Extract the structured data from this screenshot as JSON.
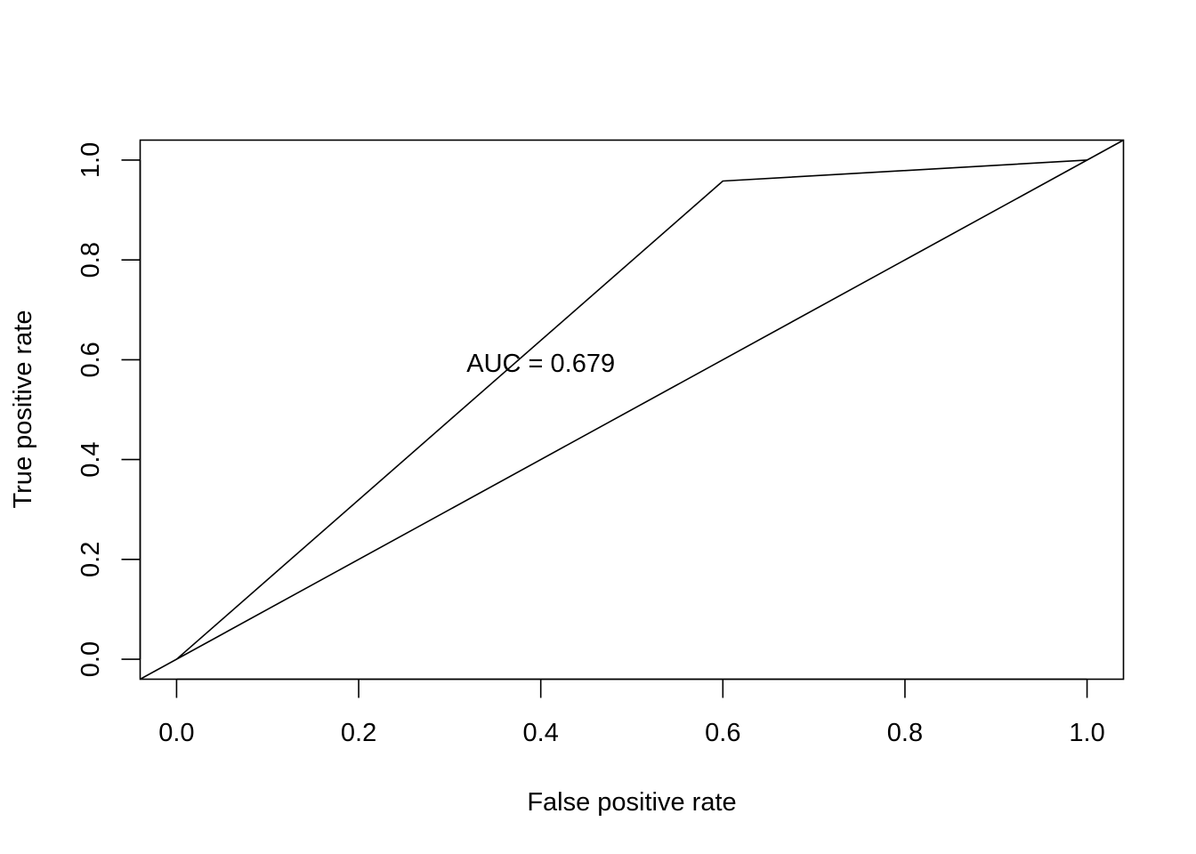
{
  "chart_data": {
    "type": "line",
    "title": "",
    "xlabel": "False positive rate",
    "ylabel": "True positive rate",
    "xlim": [
      -0.04,
      1.04
    ],
    "ylim": [
      -0.04,
      1.04
    ],
    "x_ticks": [
      0.0,
      0.2,
      0.4,
      0.6,
      0.8,
      1.0
    ],
    "x_tick_labels": [
      "0.0",
      "0.2",
      "0.4",
      "0.6",
      "0.8",
      "1.0"
    ],
    "y_ticks": [
      0.0,
      0.2,
      0.4,
      0.6,
      0.8,
      1.0
    ],
    "y_tick_labels": [
      "0.0",
      "0.2",
      "0.4",
      "0.6",
      "0.8",
      "1.0"
    ],
    "grid": false,
    "series": [
      {
        "x": [
          0.0,
          0.6,
          1.0
        ],
        "y": [
          0.0,
          0.958,
          1.0
        ],
        "color": "#000000"
      }
    ],
    "reference_line": {
      "type": "abline",
      "intercept": 0,
      "slope": 1,
      "color": "#000000"
    },
    "annotations": [
      {
        "text": "AUC = 0.679",
        "x": 0.4,
        "y": 0.594
      }
    ]
  }
}
